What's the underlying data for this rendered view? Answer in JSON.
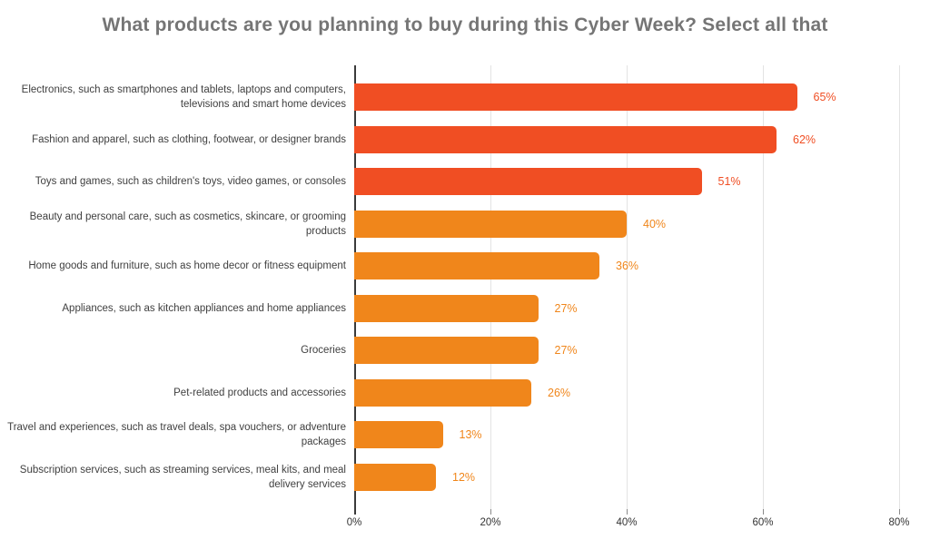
{
  "title": "What products are you planning to buy during this Cyber Week? Select all that",
  "chart_data": {
    "type": "bar",
    "orientation": "horizontal",
    "title": "What products are you planning to buy during this Cyber Week? Select all that",
    "categories": [
      "Electronics, such as smartphones and tablets, laptops and computers, televisions and smart home devices",
      "Fashion and apparel, such as clothing, footwear, or designer brands",
      "Toys and games, such as children's toys, video games, or consoles",
      "Beauty and personal care, such as cosmetics, skincare, or grooming products",
      "Home goods and furniture, such as home decor or fitness equipment",
      "Appliances, such as kitchen appliances and home appliances",
      "Groceries",
      "Pet-related products and accessories",
      "Travel and experiences, such as travel deals, spa vouchers, or adventure packages",
      "Subscription services, such as streaming services, meal kits, and meal delivery services"
    ],
    "values": [
      65,
      62,
      51,
      40,
      36,
      27,
      27,
      26,
      13,
      12
    ],
    "value_labels": [
      "65%",
      "62%",
      "51%",
      "40%",
      "36%",
      "27%",
      "27%",
      "26%",
      "13%",
      "12%"
    ],
    "bar_color_keys": [
      "red",
      "red",
      "red",
      "orange",
      "orange",
      "orange",
      "orange",
      "orange",
      "orange",
      "orange"
    ],
    "palette": {
      "red": "#F04E23",
      "orange": "#F0861B"
    },
    "xlim": [
      0,
      80
    ],
    "x_ticks": [
      {
        "value": 0,
        "label": "0%"
      },
      {
        "value": 20,
        "label": "20%"
      },
      {
        "value": 40,
        "label": "40%"
      },
      {
        "value": 60,
        "label": "60%"
      },
      {
        "value": 80,
        "label": "80%"
      }
    ],
    "grid": true,
    "legend": false,
    "colors": {
      "gridline": "#e3e3e3",
      "axis_line": "#3a3a3a",
      "category_label": "#3f3f3f",
      "tick_label": "#333333",
      "title": "#757575",
      "background": "#ffffff"
    }
  }
}
